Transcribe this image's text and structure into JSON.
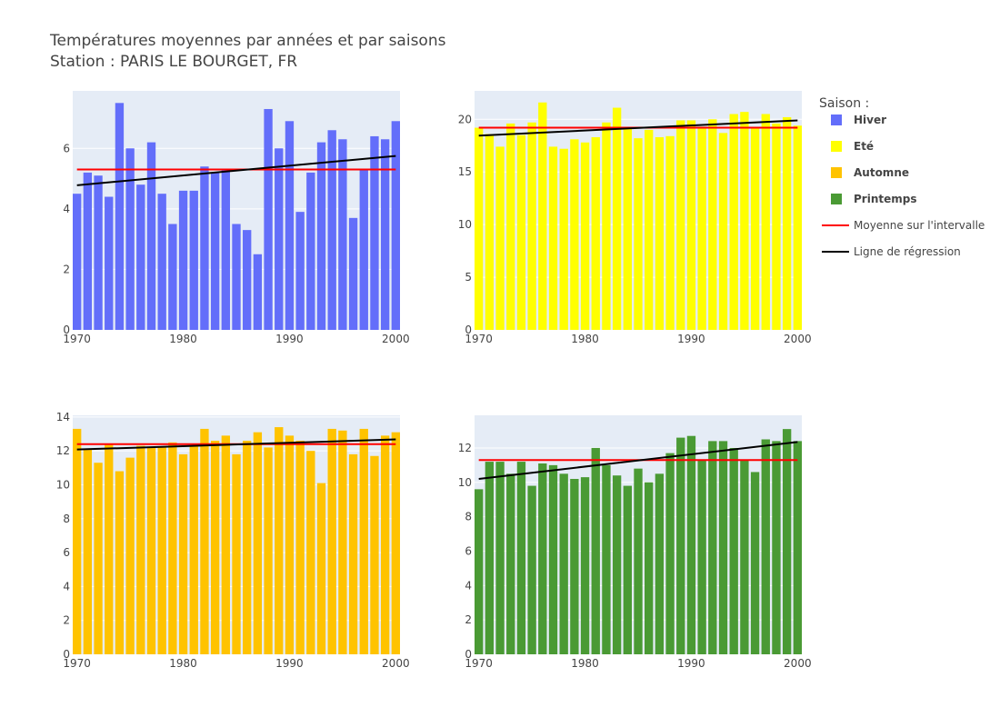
{
  "title_line1": "Températures moyennes par années et par saisons",
  "title_line2": "Station : PARIS LE BOURGET, FR",
  "colors": {
    "plot_bg": "#e5ecf6",
    "grid": "#ffffff",
    "mean_line": "#ff0000",
    "regression_line": "#000000"
  },
  "legend": {
    "title": "Saison :",
    "items": [
      {
        "label": "Hiver",
        "color": "#636efa",
        "kind": "bar"
      },
      {
        "label": "Eté",
        "color": "#ffff00",
        "kind": "bar"
      },
      {
        "label": "Automne",
        "color": "#ffc300",
        "kind": "bar"
      },
      {
        "label": "Printemps",
        "color": "#4a9a34",
        "kind": "bar"
      },
      {
        "label": "Moyenne sur l'intervalle",
        "color": "#ff0000",
        "kind": "line"
      },
      {
        "label": "Ligne de régression",
        "color": "#000000",
        "kind": "line"
      }
    ]
  },
  "chart_data": [
    {
      "type": "bar",
      "series_name": "Hiver",
      "color": "#636efa",
      "x": [
        1970,
        1971,
        1972,
        1973,
        1974,
        1975,
        1976,
        1977,
        1978,
        1979,
        1980,
        1981,
        1982,
        1983,
        1984,
        1985,
        1986,
        1987,
        1988,
        1989,
        1990,
        1991,
        1992,
        1993,
        1994,
        1995,
        1996,
        1997,
        1998,
        1999,
        2000
      ],
      "values": [
        4.5,
        5.2,
        5.1,
        4.4,
        7.5,
        6.0,
        4.8,
        6.2,
        4.5,
        3.5,
        4.6,
        4.6,
        5.4,
        5.2,
        5.3,
        3.5,
        3.3,
        2.5,
        7.3,
        6.0,
        6.9,
        3.9,
        5.2,
        6.2,
        6.6,
        6.3,
        3.7,
        5.3,
        6.4,
        6.3,
        6.9
      ],
      "mean": 5.3,
      "regression": {
        "x": [
          1970,
          2000
        ],
        "y": [
          4.78,
          5.75
        ]
      },
      "xlim": [
        1969.6,
        2000.4
      ],
      "ylim": [
        0,
        7.9
      ],
      "xticks": [
        1970,
        1980,
        1990,
        2000
      ],
      "yticks": [
        0,
        2,
        4,
        6
      ]
    },
    {
      "type": "bar",
      "series_name": "Eté",
      "color": "#ffff00",
      "x": [
        1970,
        1971,
        1972,
        1973,
        1974,
        1975,
        1976,
        1977,
        1978,
        1979,
        1980,
        1981,
        1982,
        1983,
        1984,
        1985,
        1986,
        1987,
        1988,
        1989,
        1990,
        1991,
        1992,
        1993,
        1994,
        1995,
        1996,
        1997,
        1998,
        1999,
        2000
      ],
      "values": [
        19.2,
        18.6,
        17.4,
        19.6,
        18.5,
        19.7,
        21.6,
        17.4,
        17.2,
        18.1,
        17.8,
        18.3,
        19.7,
        21.1,
        19.1,
        18.2,
        19.0,
        18.3,
        18.4,
        19.9,
        19.9,
        19.3,
        20.0,
        18.7,
        20.5,
        20.7,
        19.2,
        20.5,
        19.6,
        20.2,
        19.4
      ],
      "mean": 19.2,
      "regression": {
        "x": [
          1970,
          2000
        ],
        "y": [
          18.45,
          19.9
        ]
      },
      "xlim": [
        1969.6,
        2000.4
      ],
      "ylim": [
        0,
        22.7
      ],
      "xticks": [
        1970,
        1980,
        1990,
        2000
      ],
      "yticks": [
        0,
        5,
        10,
        15,
        20
      ]
    },
    {
      "type": "bar",
      "series_name": "Automne",
      "color": "#ffc300",
      "x": [
        1970,
        1971,
        1972,
        1973,
        1974,
        1975,
        1976,
        1977,
        1978,
        1979,
        1980,
        1981,
        1982,
        1983,
        1984,
        1985,
        1986,
        1987,
        1988,
        1989,
        1990,
        1991,
        1992,
        1993,
        1994,
        1995,
        1996,
        1997,
        1998,
        1999,
        2000
      ],
      "values": [
        13.3,
        12.1,
        11.3,
        12.4,
        10.8,
        11.6,
        12.3,
        12.2,
        12.2,
        12.5,
        11.8,
        12.3,
        13.3,
        12.6,
        12.9,
        11.8,
        12.6,
        13.1,
        12.2,
        13.4,
        12.9,
        12.6,
        12.0,
        10.1,
        13.3,
        13.2,
        11.8,
        13.3,
        11.7,
        12.9,
        13.1
      ],
      "mean": 12.4,
      "regression": {
        "x": [
          1970,
          2000
        ],
        "y": [
          12.08,
          12.68
        ]
      },
      "xlim": [
        1969.6,
        2000.4
      ],
      "ylim": [
        0,
        14.1
      ],
      "xticks": [
        1970,
        1980,
        1990,
        2000
      ],
      "yticks": [
        0,
        2,
        4,
        6,
        8,
        10,
        12,
        14
      ]
    },
    {
      "type": "bar",
      "series_name": "Printemps",
      "color": "#4a9a34",
      "x": [
        1970,
        1971,
        1972,
        1973,
        1974,
        1975,
        1976,
        1977,
        1978,
        1979,
        1980,
        1981,
        1982,
        1983,
        1984,
        1985,
        1986,
        1987,
        1988,
        1989,
        1990,
        1991,
        1992,
        1993,
        1994,
        1995,
        1996,
        1997,
        1998,
        1999,
        2000
      ],
      "values": [
        9.6,
        11.2,
        11.2,
        10.5,
        11.2,
        9.8,
        11.1,
        11.0,
        10.5,
        10.2,
        10.3,
        12.0,
        11.0,
        10.4,
        9.8,
        10.8,
        10.0,
        10.5,
        11.7,
        12.6,
        12.7,
        11.3,
        12.4,
        12.4,
        12.0,
        11.3,
        10.6,
        12.5,
        12.4,
        13.1,
        12.4
      ],
      "mean": 11.3,
      "regression": {
        "x": [
          1970,
          2000
        ],
        "y": [
          10.2,
          12.35
        ]
      },
      "xlim": [
        1969.6,
        2000.4
      ],
      "ylim": [
        0,
        13.9
      ],
      "xticks": [
        1970,
        1980,
        1990,
        2000
      ],
      "yticks": [
        0,
        2,
        4,
        6,
        8,
        10,
        12
      ]
    }
  ]
}
